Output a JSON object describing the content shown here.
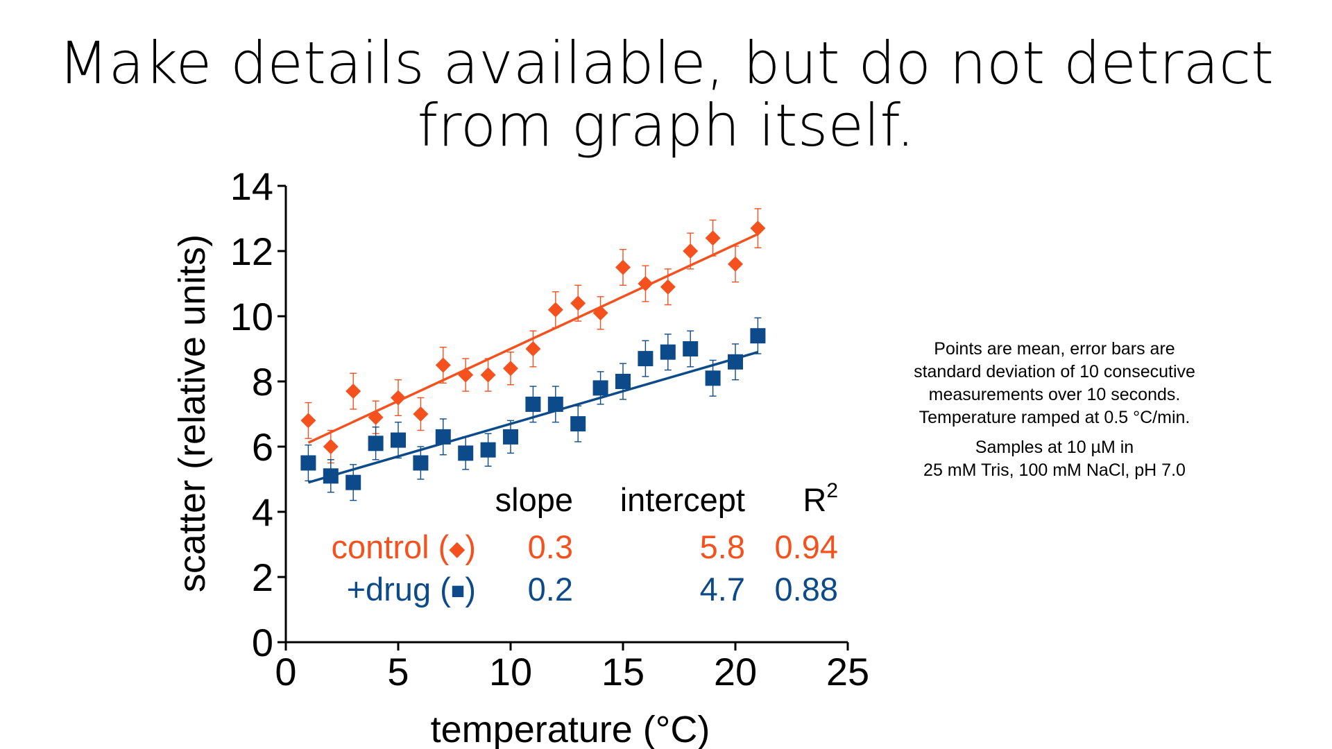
{
  "slide": {
    "title_line1": "Make details available, but do not detract",
    "title_line2": "from graph itself."
  },
  "notes": {
    "line1": "Points are mean, error bars are",
    "line2": "standard deviation of 10 consecutive",
    "line3": "measurements over 10 seconds.",
    "line4": "Temperature ramped at 0.5 °C/min.",
    "line5": "Samples at 10 µM in",
    "line6": "25 mM Tris, 100 mM NaCl, pH 7.0"
  },
  "colors": {
    "control": "#f4511e",
    "drug": "#0d4a8a",
    "axis": "#000000"
  },
  "chart_data": {
    "type": "scatter",
    "xlabel": "temperature (°C)",
    "ylabel": "scatter (relative units)",
    "xlim": [
      0,
      25
    ],
    "ylim": [
      0,
      14
    ],
    "xticks": [
      0,
      5,
      10,
      15,
      20,
      25
    ],
    "yticks": [
      0,
      2,
      4,
      6,
      8,
      10,
      12,
      14
    ],
    "grid": false,
    "series": [
      {
        "name": "control",
        "marker": "diamond",
        "x": [
          1,
          2,
          3,
          4,
          5,
          6,
          7,
          8,
          9,
          10,
          11,
          12,
          13,
          14,
          15,
          16,
          17,
          18,
          19,
          20,
          21
        ],
        "y": [
          6.8,
          6.0,
          7.7,
          6.9,
          7.5,
          7.0,
          8.5,
          8.2,
          8.2,
          8.4,
          9.0,
          10.2,
          10.4,
          10.1,
          11.5,
          11.0,
          10.9,
          12.0,
          12.4,
          11.6,
          12.7
        ],
        "err": [
          0.55,
          0.5,
          0.55,
          0.5,
          0.55,
          0.5,
          0.55,
          0.5,
          0.5,
          0.5,
          0.55,
          0.55,
          0.55,
          0.5,
          0.55,
          0.55,
          0.55,
          0.55,
          0.55,
          0.55,
          0.6
        ],
        "fit": {
          "slope": 0.32,
          "intercept": 5.8
        }
      },
      {
        "name": "+drug",
        "marker": "square",
        "x": [
          1,
          2,
          3,
          4,
          5,
          6,
          7,
          8,
          9,
          10,
          11,
          12,
          13,
          14,
          15,
          16,
          17,
          18,
          19,
          20,
          21
        ],
        "y": [
          5.5,
          5.1,
          4.9,
          6.1,
          6.2,
          5.5,
          6.3,
          5.8,
          5.9,
          6.3,
          7.3,
          7.3,
          6.7,
          7.8,
          8.0,
          8.7,
          8.9,
          9.0,
          8.1,
          8.6,
          9.4
        ],
        "err": [
          0.55,
          0.5,
          0.55,
          0.5,
          0.55,
          0.5,
          0.55,
          0.5,
          0.5,
          0.5,
          0.55,
          0.55,
          0.55,
          0.5,
          0.55,
          0.55,
          0.55,
          0.55,
          0.55,
          0.55,
          0.55
        ],
        "fit": {
          "slope": 0.2,
          "intercept": 4.7
        }
      }
    ],
    "stats_table": {
      "headers": [
        "slope",
        "intercept",
        "R",
        "2"
      ],
      "rows": [
        {
          "label": "control (",
          "marker": "◆",
          "close": ")",
          "slope": "0.3",
          "intercept": "5.8",
          "r2": "0.94"
        },
        {
          "label": "+drug (",
          "marker": "■",
          "close": ")",
          "slope": "0.2",
          "intercept": "4.7",
          "r2": "0.88"
        }
      ]
    }
  }
}
